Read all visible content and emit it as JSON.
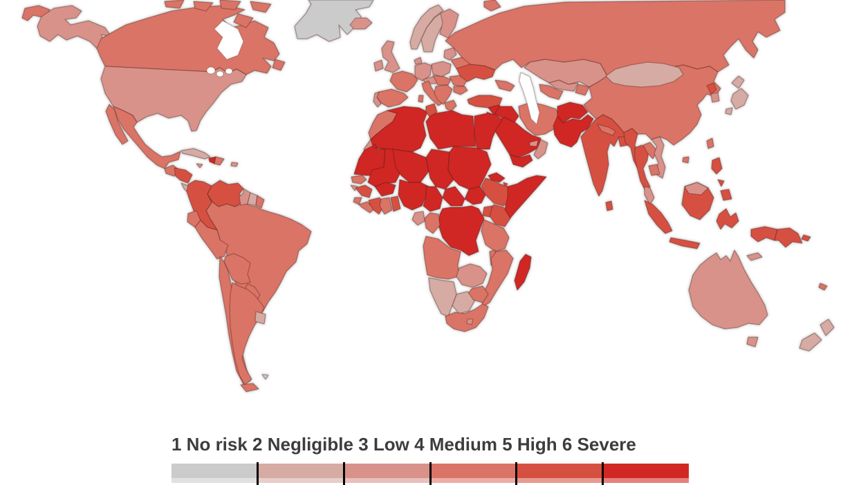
{
  "map": {
    "ocean_color": "#ffffff",
    "border_color": "rgba(70,20,15,0.35)",
    "water_border_color": "rgba(70,40,35,0.25)",
    "halo_color": "rgba(150,150,150,0.5)",
    "countries": [
      {
        "id": "greenland",
        "label": "Greenland",
        "level": 1
      },
      {
        "id": "falkland-islands",
        "label": "Falkland Islands",
        "level": 1
      },
      {
        "id": "cuba",
        "label": "Cuba",
        "level": 2
      },
      {
        "id": "suriname",
        "label": "Suriname",
        "level": 2
      },
      {
        "id": "uruguay",
        "label": "Uruguay",
        "level": 2
      },
      {
        "id": "norway",
        "label": "Norway",
        "level": 2
      },
      {
        "id": "sweden",
        "label": "Sweden",
        "level": 2
      },
      {
        "id": "mongolia",
        "label": "Mongolia",
        "level": 2
      },
      {
        "id": "japan",
        "label": "Japan",
        "level": 2
      },
      {
        "id": "new-zealand",
        "label": "New Zealand",
        "level": 2
      },
      {
        "id": "namibia",
        "label": "Namibia",
        "level": 2
      },
      {
        "id": "botswana",
        "label": "Botswana",
        "level": 2
      },
      {
        "id": "costa-rica-panama",
        "label": "Costa Rica / Panama",
        "level": 2
      },
      {
        "id": "usa",
        "label": "United States",
        "level": 3
      },
      {
        "id": "iceland",
        "label": "Iceland",
        "level": 3
      },
      {
        "id": "uk",
        "label": "United Kingdom",
        "level": 3
      },
      {
        "id": "ireland",
        "label": "Ireland",
        "level": 3
      },
      {
        "id": "finland",
        "label": "Finland",
        "level": 3
      },
      {
        "id": "denmark",
        "label": "Denmark",
        "level": 3
      },
      {
        "id": "germany",
        "label": "Germany",
        "level": 3
      },
      {
        "id": "poland",
        "label": "Poland",
        "level": 3
      },
      {
        "id": "baltics",
        "label": "Baltic states",
        "level": 3
      },
      {
        "id": "portugal",
        "label": "Portugal",
        "level": 3
      },
      {
        "id": "kazakhstan",
        "label": "Kazakhstan",
        "level": 3
      },
      {
        "id": "uzbekistan",
        "label": "Uzbekistan",
        "level": 3
      },
      {
        "id": "south-korea",
        "label": "South Korea",
        "level": 3
      },
      {
        "id": "vietnam",
        "label": "Vietnam",
        "level": 3
      },
      {
        "id": "malaysia",
        "label": "Malaysia",
        "level": 3
      },
      {
        "id": "oman",
        "label": "Oman",
        "level": 3
      },
      {
        "id": "uae",
        "label": "United Arab Emirates",
        "level": 3
      },
      {
        "id": "western-sahara",
        "label": "Western Sahara",
        "level": 3
      },
      {
        "id": "gabon",
        "label": "Gabon",
        "level": 3
      },
      {
        "id": "zambia",
        "label": "Zambia",
        "level": 3
      },
      {
        "id": "australia",
        "label": "Australia",
        "level": 3
      },
      {
        "id": "jamaica",
        "label": "Jamaica",
        "level": 3
      },
      {
        "id": "puerto-rico",
        "label": "Puerto Rico",
        "level": 3
      },
      {
        "id": "guinea-bissau",
        "label": "Guinea-Bissau",
        "level": 3
      },
      {
        "id": "lesotho",
        "label": "Lesotho",
        "level": 3
      },
      {
        "id": "timor",
        "label": "Timor-Leste",
        "level": 3
      },
      {
        "id": "alpine",
        "label": "Switzerland / Austria",
        "level": 3
      },
      {
        "id": "guyana",
        "label": "Guyana",
        "level": 3
      },
      {
        "id": "canada",
        "label": "Canada",
        "level": 4
      },
      {
        "id": "mexico",
        "label": "Mexico",
        "level": 4
      },
      {
        "id": "guatemala",
        "label": "Guatemala",
        "level": 4
      },
      {
        "id": "dominican-republic",
        "label": "Dominican Republic",
        "level": 4
      },
      {
        "id": "ecuador",
        "label": "Ecuador",
        "level": 4
      },
      {
        "id": "peru",
        "label": "Peru",
        "level": 4
      },
      {
        "id": "brazil",
        "label": "Brazil",
        "level": 4
      },
      {
        "id": "bolivia",
        "label": "Bolivia",
        "level": 4
      },
      {
        "id": "paraguay",
        "label": "Paraguay",
        "level": 4
      },
      {
        "id": "chile",
        "label": "Chile",
        "level": 4
      },
      {
        "id": "argentina",
        "label": "Argentina",
        "level": 4
      },
      {
        "id": "france",
        "label": "France",
        "level": 4
      },
      {
        "id": "spain",
        "label": "Spain",
        "level": 4
      },
      {
        "id": "italy",
        "label": "Italy",
        "level": 4
      },
      {
        "id": "czech-hungary",
        "label": "Central Europe",
        "level": 4
      },
      {
        "id": "balkans",
        "label": "Balkans",
        "level": 4
      },
      {
        "id": "greece",
        "label": "Greece",
        "level": 4
      },
      {
        "id": "romania",
        "label": "Romania",
        "level": 4
      },
      {
        "id": "bulgaria",
        "label": "Bulgaria",
        "level": 4
      },
      {
        "id": "belarus",
        "label": "Belarus",
        "level": 4
      },
      {
        "id": "russia",
        "label": "Russia",
        "level": 4
      },
      {
        "id": "morocco",
        "label": "Morocco",
        "level": 4
      },
      {
        "id": "senegal",
        "label": "Senegal",
        "level": 4
      },
      {
        "id": "sierra-leone",
        "label": "Sierra Leone",
        "level": 4
      },
      {
        "id": "liberia",
        "label": "Liberia",
        "level": 4
      },
      {
        "id": "ghana",
        "label": "Ghana",
        "level": 4
      },
      {
        "id": "congo",
        "label": "Congo",
        "level": 4
      },
      {
        "id": "angola",
        "label": "Angola",
        "level": 4
      },
      {
        "id": "tanzania",
        "label": "Tanzania",
        "level": 4
      },
      {
        "id": "malawi",
        "label": "Malawi",
        "level": 4
      },
      {
        "id": "mozambique",
        "label": "Mozambique",
        "level": 4
      },
      {
        "id": "zimbabwe",
        "label": "Zimbabwe",
        "level": 4
      },
      {
        "id": "south-africa",
        "label": "South Africa",
        "level": 4
      },
      {
        "id": "caucasus",
        "label": "Caucasus",
        "level": 4
      },
      {
        "id": "turkmenistan",
        "label": "Turkmenistan",
        "level": 4
      },
      {
        "id": "kyrgyzstan-tajikistan",
        "label": "Kyrgyzstan / Tajikistan",
        "level": 4
      },
      {
        "id": "china",
        "label": "China",
        "level": 4
      },
      {
        "id": "taiwan",
        "label": "Taiwan",
        "level": 4
      },
      {
        "id": "nepal",
        "label": "Nepal",
        "level": 4
      },
      {
        "id": "laos",
        "label": "Laos",
        "level": 4
      },
      {
        "id": "cambodia",
        "label": "Cambodia",
        "level": 4
      },
      {
        "id": "new-caledonia",
        "label": "New Caledonia",
        "level": 4
      },
      {
        "id": "iran",
        "label": "Iran",
        "level": 4
      },
      {
        "id": "french-guiana",
        "label": "French Guiana",
        "level": 4
      },
      {
        "id": "colombia",
        "label": "Colombia",
        "level": 5
      },
      {
        "id": "venezuela",
        "label": "Venezuela",
        "level": 5
      },
      {
        "id": "honduras-nicaragua",
        "label": "Honduras / Nicaragua",
        "level": 5
      },
      {
        "id": "ukraine",
        "label": "Ukraine",
        "level": 5
      },
      {
        "id": "turkey",
        "label": "Turkey",
        "level": 5
      },
      {
        "id": "jordan",
        "label": "Jordan",
        "level": 5
      },
      {
        "id": "guinea",
        "label": "Guinea",
        "level": 5
      },
      {
        "id": "ivory-coast",
        "label": "Côte d'Ivoire",
        "level": 5
      },
      {
        "id": "togo-benin",
        "label": "Togo / Benin",
        "level": 5
      },
      {
        "id": "ethiopia",
        "label": "Ethiopia",
        "level": 5
      },
      {
        "id": "kenya",
        "label": "Kenya",
        "level": 5
      },
      {
        "id": "uganda",
        "label": "Uganda",
        "level": 5
      },
      {
        "id": "india",
        "label": "India",
        "level": 5
      },
      {
        "id": "bangladesh",
        "label": "Bangladesh",
        "level": 5
      },
      {
        "id": "sri-lanka",
        "label": "Sri Lanka",
        "level": 5
      },
      {
        "id": "myanmar",
        "label": "Myanmar",
        "level": 5
      },
      {
        "id": "thailand",
        "label": "Thailand",
        "level": 5
      },
      {
        "id": "indonesia",
        "label": "Indonesia",
        "level": 5
      },
      {
        "id": "philippines",
        "label": "Philippines",
        "level": 5
      },
      {
        "id": "papua-new-guinea",
        "label": "Papua New Guinea",
        "level": 5
      },
      {
        "id": "north-korea",
        "label": "North Korea",
        "level": 5
      },
      {
        "id": "tunisia",
        "label": "Tunisia",
        "level": 5
      },
      {
        "id": "djibouti",
        "label": "Djibouti",
        "level": 5
      },
      {
        "id": "haiti",
        "label": "Haiti",
        "level": 6
      },
      {
        "id": "mauritania",
        "label": "Mauritania",
        "level": 6
      },
      {
        "id": "mali",
        "label": "Mali",
        "level": 6
      },
      {
        "id": "niger",
        "label": "Niger",
        "level": 6
      },
      {
        "id": "chad",
        "label": "Chad",
        "level": 6
      },
      {
        "id": "sudan",
        "label": "Sudan",
        "level": 6
      },
      {
        "id": "south-sudan",
        "label": "South Sudan",
        "level": 6
      },
      {
        "id": "eritrea",
        "label": "Eritrea",
        "level": 6
      },
      {
        "id": "somalia",
        "label": "Somalia",
        "level": 6
      },
      {
        "id": "algeria",
        "label": "Algeria",
        "level": 6
      },
      {
        "id": "libya",
        "label": "Libya",
        "level": 6
      },
      {
        "id": "egypt",
        "label": "Egypt",
        "level": 6
      },
      {
        "id": "burkina-faso",
        "label": "Burkina Faso",
        "level": 6
      },
      {
        "id": "nigeria",
        "label": "Nigeria",
        "level": 6
      },
      {
        "id": "cameroon",
        "label": "Cameroon",
        "level": 6
      },
      {
        "id": "central-african-republic",
        "label": "Central African Republic",
        "level": 6
      },
      {
        "id": "dr-congo",
        "label": "DR Congo",
        "level": 6
      },
      {
        "id": "madagascar",
        "label": "Madagascar",
        "level": 6
      },
      {
        "id": "syria",
        "label": "Syria",
        "level": 6
      },
      {
        "id": "iraq",
        "label": "Iraq",
        "level": 6
      },
      {
        "id": "saudi-arabia",
        "label": "Saudi Arabia",
        "level": 6
      },
      {
        "id": "yemen",
        "label": "Yemen",
        "level": 6
      },
      {
        "id": "afghanistan",
        "label": "Afghanistan",
        "level": 6
      },
      {
        "id": "pakistan",
        "label": "Pakistan",
        "level": 6
      }
    ]
  },
  "legend": {
    "title": "1 No risk 2 Negligible 3 Low 4 Medium 5 High 6 Severe",
    "title_color": "#3d3d3d",
    "tick_color": "#000000",
    "levels": [
      {
        "value": 1,
        "label": "No risk",
        "color": "#cbcbcb"
      },
      {
        "value": 2,
        "label": "Negligible",
        "color": "#d5aba3"
      },
      {
        "value": 3,
        "label": "Low",
        "color": "#d8928a"
      },
      {
        "value": 4,
        "label": "Medium",
        "color": "#da7466"
      },
      {
        "value": 5,
        "label": "High",
        "color": "#d65042"
      },
      {
        "value": 6,
        "label": "Severe",
        "color": "#d02724"
      }
    ]
  }
}
